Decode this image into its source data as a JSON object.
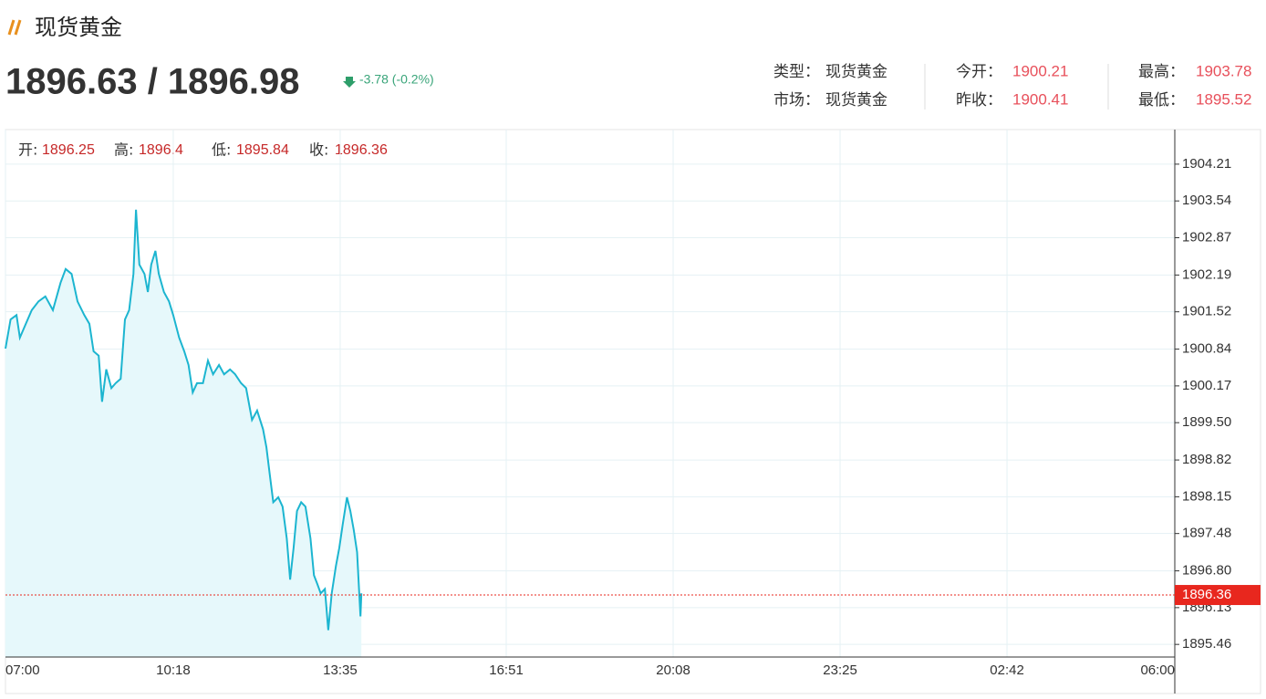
{
  "header": {
    "title": "现货黄金",
    "bid_ask": "1896.63 / 1896.98",
    "change": "-3.78 (-0.2%)",
    "info": [
      {
        "label": "类型：",
        "value": "现货黄金"
      },
      {
        "label": "今开：",
        "value": 1900.21
      },
      {
        "label": "最高：",
        "value": 1903.78
      },
      {
        "label": "市场：",
        "value": "现货黄金"
      },
      {
        "label": "昨收：",
        "value": 1900.41
      },
      {
        "label": "最低：",
        "value": 1895.52
      }
    ]
  },
  "chart_data": {
    "type": "line",
    "ohlc": [
      {
        "label": "开:",
        "value": 1896.25
      },
      {
        "label": "高:",
        "value": 1896.4
      },
      {
        "label": "低:",
        "value": 1895.84
      },
      {
        "label": "收:",
        "value": 1896.36
      }
    ],
    "x": [
      0,
      6,
      13,
      17,
      24,
      31,
      39,
      47,
      56,
      65,
      71,
      78,
      85,
      93,
      99,
      104,
      110,
      114,
      119,
      125,
      130,
      136,
      141,
      146,
      151,
      154,
      158,
      164,
      168,
      172,
      177,
      181,
      187,
      193,
      198,
      205,
      211,
      216,
      221,
      226,
      233,
      239,
      245,
      252,
      258,
      265,
      271,
      278,
      284,
      291,
      297,
      304,
      308,
      312,
      316,
      322,
      327,
      332,
      336,
      340,
      344,
      349,
      354,
      360,
      364,
      368,
      372,
      377,
      381,
      385,
      390,
      394,
      398,
      403,
      407,
      411,
      415,
      419,
      420
    ],
    "values": [
      1900.85,
      1901.38,
      1901.46,
      1901.05,
      1901.3,
      1901.55,
      1901.71,
      1901.8,
      1901.55,
      1902.05,
      1902.3,
      1902.21,
      1901.71,
      1901.46,
      1901.3,
      1900.8,
      1900.72,
      1899.88,
      1900.47,
      1900.13,
      1900.22,
      1900.3,
      1901.38,
      1901.55,
      1902.21,
      1903.38,
      1902.38,
      1902.21,
      1901.88,
      1902.38,
      1902.63,
      1902.21,
      1901.88,
      1901.71,
      1901.46,
      1901.05,
      1900.8,
      1900.55,
      1900.05,
      1900.22,
      1900.22,
      1900.63,
      1900.38,
      1900.55,
      1900.38,
      1900.47,
      1900.38,
      1900.22,
      1900.13,
      1899.55,
      1899.72,
      1899.38,
      1899.05,
      1898.55,
      1898.05,
      1898.14,
      1897.97,
      1897.39,
      1896.64,
      1897.22,
      1897.89,
      1898.05,
      1897.97,
      1897.39,
      1896.72,
      1896.56,
      1896.39,
      1896.47,
      1895.72,
      1896.39,
      1896.89,
      1897.22,
      1897.64,
      1898.14,
      1897.89,
      1897.55,
      1897.14,
      1895.97,
      1896.39
    ],
    "color": "#1cb5d0",
    "xlim": [
      0,
      1380
    ],
    "xticks": [
      {
        "value": 0,
        "label": "07:00"
      },
      {
        "value": 198,
        "label": "10:18"
      },
      {
        "value": 395,
        "label": "13:35"
      },
      {
        "value": 591,
        "label": "16:51"
      },
      {
        "value": 788,
        "label": "20:08"
      },
      {
        "value": 985,
        "label": "23:25"
      },
      {
        "value": 1182,
        "label": "02:42"
      },
      {
        "value": 1380,
        "label": "06:00"
      }
    ],
    "ylim": [
      1895.23,
      1904.84
    ],
    "yticks": [
      1904.21,
      1903.54,
      1902.87,
      1902.19,
      1901.52,
      1900.84,
      1900.17,
      {
        "value": 1899.5,
        "label": "1899.50"
      },
      1898.82,
      1898.15,
      1897.48,
      {
        "value": 1896.8,
        "label": "1896.80"
      },
      1896.13,
      1895.46
    ],
    "grid": true
  }
}
